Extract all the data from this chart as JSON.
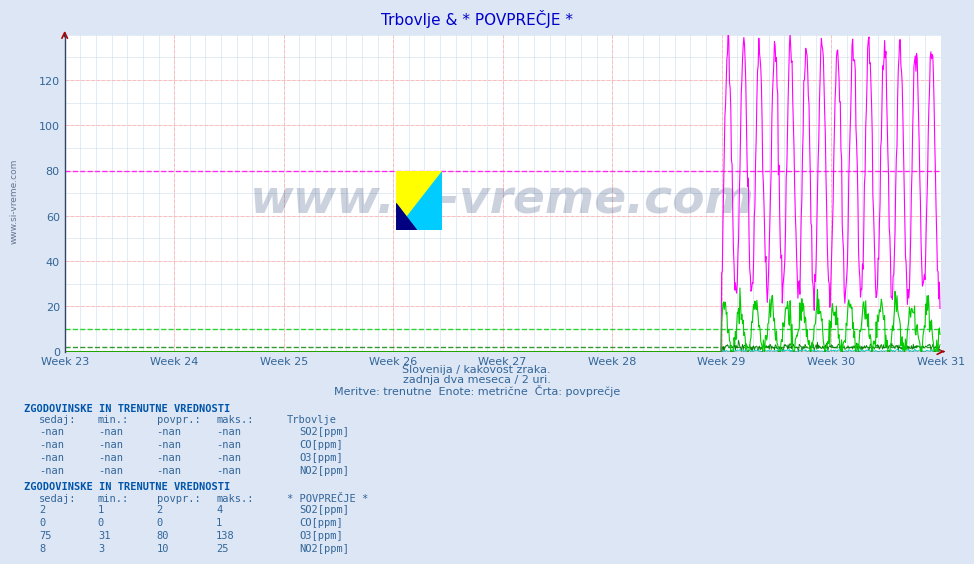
{
  "title": "Trbovlje & * POVPREČJE *",
  "title_color": "#0000cc",
  "bg_color": "#dce6f5",
  "plot_bg_color": "#ffffff",
  "grid_color_major": "#ffbbbb",
  "grid_color_minor": "#ccddee",
  "xlim": [
    0,
    1344
  ],
  "ylim": [
    0,
    140
  ],
  "yticks": [
    0,
    20,
    40,
    60,
    80,
    100,
    120
  ],
  "week_labels": [
    "Week 23",
    "Week 24",
    "Week 25",
    "Week 26",
    "Week 27",
    "Week 28",
    "Week 29",
    "Week 30",
    "Week 31"
  ],
  "week_positions": [
    0,
    168,
    336,
    504,
    672,
    840,
    1008,
    1176,
    1344
  ],
  "colors": {
    "SO2": "#008000",
    "CO": "#00cccc",
    "O3": "#ff00ff",
    "NO2": "#00cc00"
  },
  "o3_avg": 80,
  "no2_avg": 10,
  "so2_avg": 2,
  "co_avg": 0,
  "subtitle1": "Slovenija / kakovost zraka.",
  "subtitle2": "zadnja dva meseca / 2 uri.",
  "subtitle3": "Meritve: trenutne  Enote: metrične  Črta: povprečje",
  "watermark": "www.si-vreme.com",
  "n_points": 1344,
  "data_start": 1008,
  "logo_color1": "#ffff00",
  "logo_color2": "#00ccff",
  "logo_color3": "#000080",
  "text_color": "#336699",
  "header_color": "#0055aa"
}
